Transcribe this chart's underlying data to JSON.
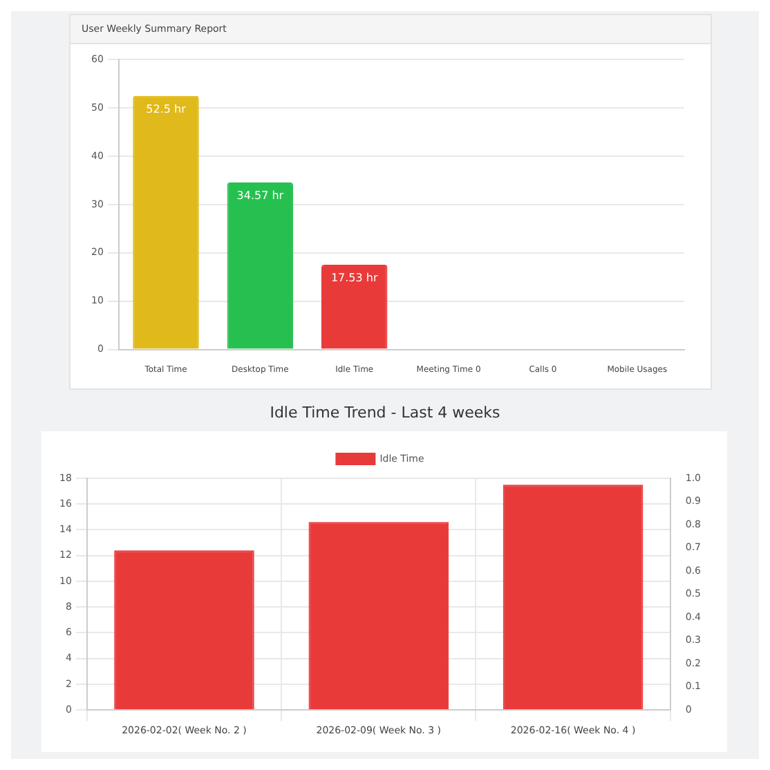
{
  "chart_data": [
    {
      "type": "bar",
      "title": "User Weekly Summary Report",
      "categories": [
        "Total Time",
        "Desktop Time",
        "Idle Time",
        "Meeting Time 0",
        "Calls 0",
        "Mobile Usages"
      ],
      "values": [
        52.5,
        34.57,
        17.53,
        0,
        0,
        0
      ],
      "colors": [
        "#e0b91a",
        "#26c050",
        "#e93a3a",
        "#c0504d",
        "#6c8ee8",
        "#6aa39a"
      ],
      "value_labels": [
        "52.5 hr",
        "34.57 hr",
        "17.53 hr",
        null,
        null,
        null
      ],
      "ylim": [
        0,
        60
      ],
      "yticks": [
        0,
        10,
        20,
        30,
        40,
        50,
        60
      ],
      "grid": "y",
      "legend": false
    },
    {
      "type": "bar",
      "title": "Idle Time Trend - Last 4 weeks",
      "categories": [
        "2026-02-02( Week No. 2 )",
        "2026-02-09( Week No. 3 )",
        "2026-02-16( Week No. 4 )"
      ],
      "series": [
        {
          "name": "Idle Time",
          "color": "#e93a3a",
          "values": [
            12.4,
            14.6,
            17.5
          ]
        }
      ],
      "ylim": [
        0,
        18
      ],
      "yticks": [
        0,
        2,
        4,
        6,
        8,
        10,
        12,
        14,
        16,
        18
      ],
      "y2lim": [
        0,
        1
      ],
      "y2ticks": [
        0,
        0.1,
        0.2,
        0.3,
        0.4,
        0.5,
        0.6,
        0.7,
        0.8,
        0.9,
        {
          "value": 1,
          "label": "1.0"
        }
      ],
      "grid": true,
      "legend": "top"
    }
  ]
}
